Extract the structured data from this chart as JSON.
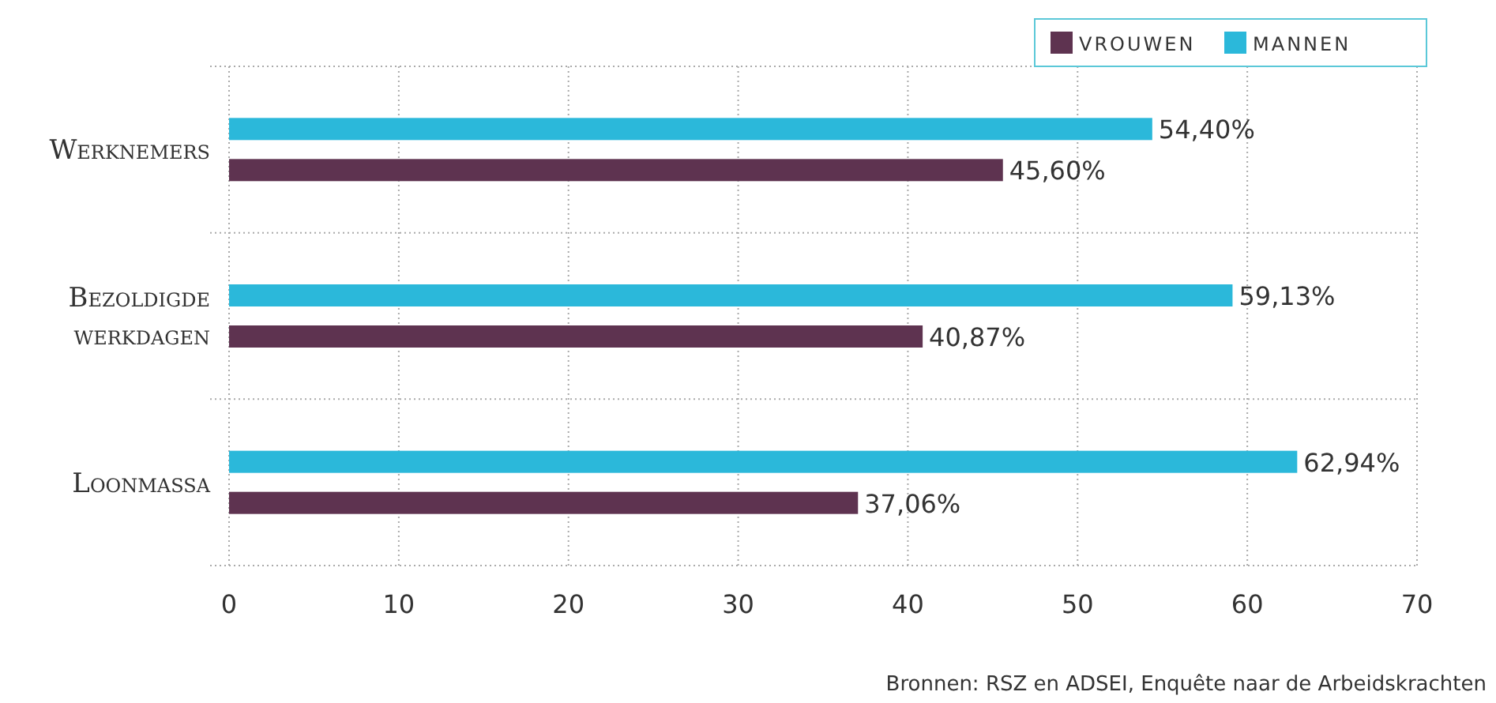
{
  "chart_data": {
    "type": "bar",
    "orientation": "horizontal",
    "categories": [
      "Werknemers",
      "Bezoldigde werkdagen",
      "Loonmassa"
    ],
    "series": [
      {
        "name": "VROUWEN",
        "color": "#5e3350",
        "values": [
          45.6,
          40.87,
          37.06
        ],
        "value_labels": [
          "45,60%",
          "40,87%",
          "37,06%"
        ]
      },
      {
        "name": "MANNEN",
        "color": "#2bb8da",
        "values": [
          54.4,
          59.13,
          62.94
        ],
        "value_labels": [
          "54,40%",
          "59,13%",
          "62,94%"
        ]
      }
    ],
    "xlim": [
      0,
      70
    ],
    "xticks": [
      0,
      10,
      20,
      30,
      40,
      50,
      60,
      70
    ],
    "grid": true,
    "legend": "top right",
    "annotations": [
      "Bronnen: RSZ en ADSEI, Enquête naar de Arbeidskrachten"
    ]
  }
}
